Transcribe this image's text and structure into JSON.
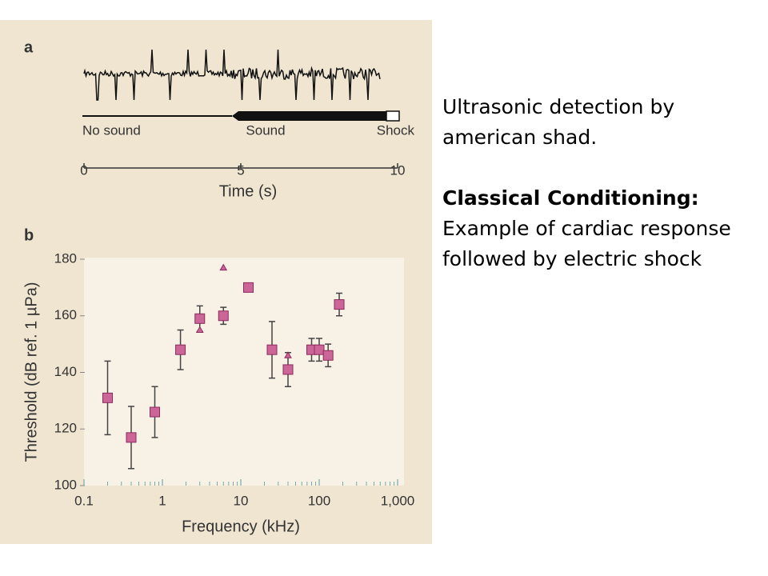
{
  "panel_labels": [
    "a",
    "b"
  ],
  "chart_data": [
    {
      "type": "timeline",
      "xlabel": "Time (s)",
      "xlim": [
        0,
        10
      ],
      "xticks": [
        0,
        5,
        10
      ],
      "phases": [
        "No sound",
        "Sound",
        "Shock"
      ]
    },
    {
      "type": "scatter",
      "xlabel": "Frequency (kHz)",
      "ylabel": "Threshold (dB ref. 1 µPa)",
      "log_x": true,
      "xlim": [
        0.1,
        1000
      ],
      "ylim": [
        100,
        180
      ],
      "xticks": [
        0.1,
        1,
        10,
        100,
        {
          "value": 1000,
          "label": "1,000"
        }
      ],
      "yticks": [
        100,
        120,
        140,
        160,
        180
      ],
      "series": [
        {
          "marker": "square",
          "color": "#cc6699",
          "x": [
            0.2,
            0.4,
            0.8,
            1.7,
            3,
            6,
            12.5,
            25,
            40,
            80,
            100,
            130,
            180
          ],
          "values": [
            131,
            117,
            126,
            148,
            159,
            160,
            170,
            148,
            141,
            148,
            148,
            146,
            164
          ],
          "errors": [
            13,
            11,
            9,
            7,
            4.5,
            3,
            1,
            10,
            6,
            4,
            4,
            4,
            4
          ]
        },
        {
          "marker": "triangle",
          "color": "#cc6699",
          "x": [
            3,
            6,
            40
          ],
          "values": [
            155,
            177,
            146
          ]
        }
      ]
    }
  ],
  "slide_text": {
    "title": "Ultrasonic detection by american shad.",
    "heading": "Classical Conditioning:",
    "body": "Example of cardiac response followed by electric shock"
  }
}
